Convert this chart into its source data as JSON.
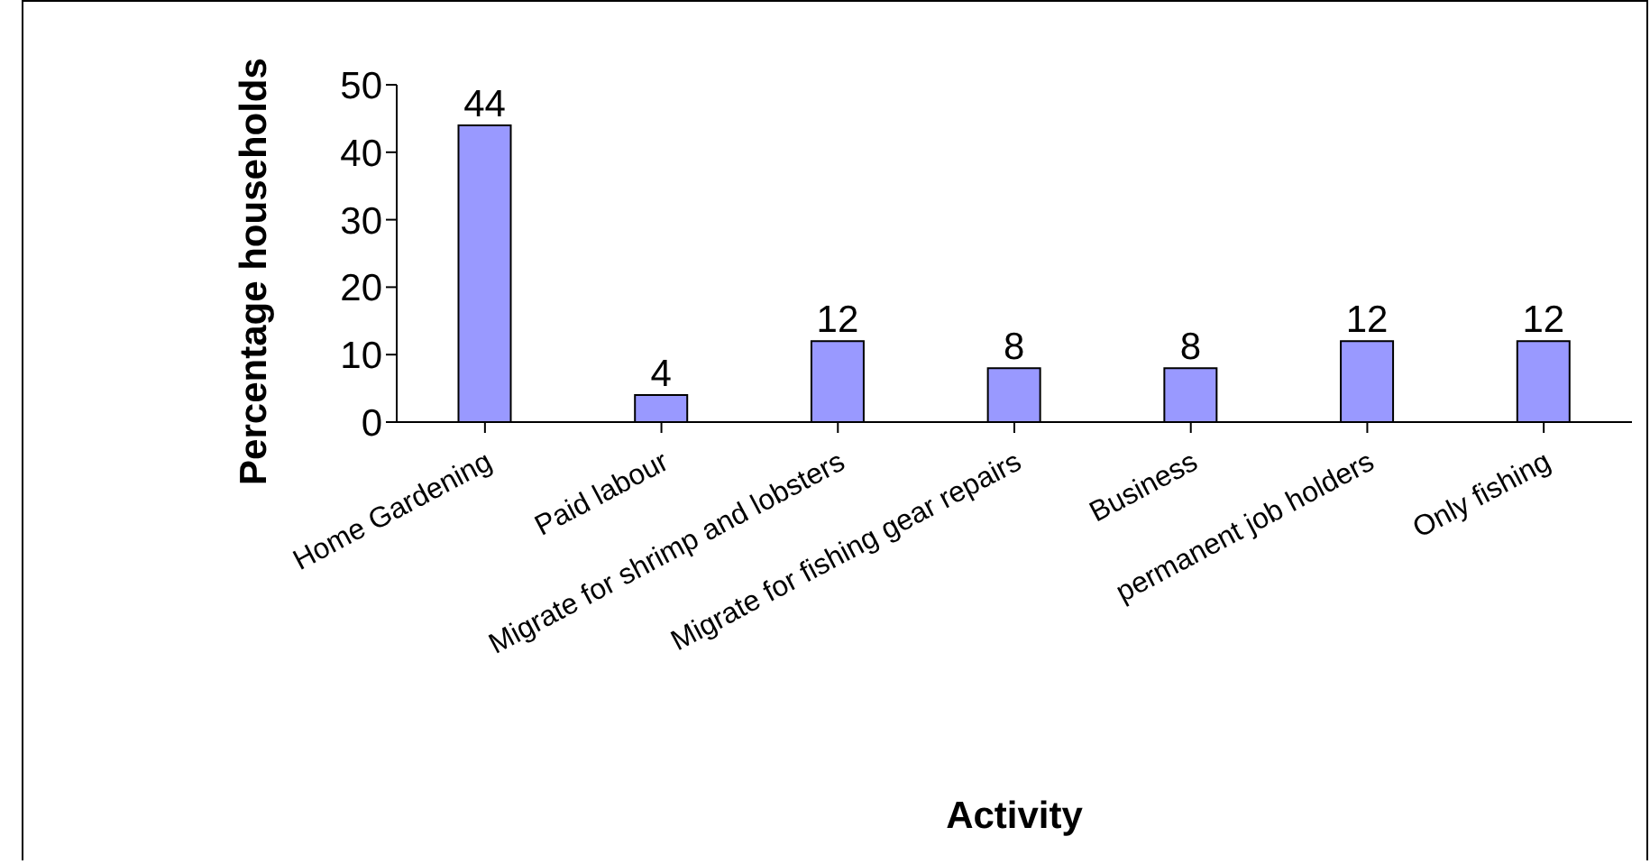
{
  "chart_data": {
    "type": "bar",
    "xlabel": "Activity",
    "ylabel": "Percentage households",
    "categories": [
      "Home Gardening",
      "Paid labour",
      "Migrate for shrimp and lobsters",
      "Migrate for fishing gear repairs",
      "Business",
      "permanent job holders",
      "Only fishing"
    ],
    "values": [
      44,
      4,
      12,
      8,
      8,
      12,
      12
    ],
    "color": "#9999ff",
    "ylim": [
      0,
      50
    ],
    "yticks": [
      0,
      10,
      20,
      30,
      40,
      50
    ],
    "grid": false,
    "legend": false,
    "data_labels": true
  }
}
